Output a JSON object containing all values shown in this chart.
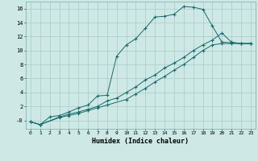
{
  "xlabel": "Humidex (Indice chaleur)",
  "bg_color": "#cde8e5",
  "grid_color": "#a8ccca",
  "line_color": "#1a6b6b",
  "xlim": [
    -0.5,
    23.5
  ],
  "ylim": [
    -1.2,
    17.0
  ],
  "xticks": [
    0,
    1,
    2,
    3,
    4,
    5,
    6,
    7,
    8,
    9,
    10,
    11,
    12,
    13,
    14,
    15,
    16,
    17,
    18,
    19,
    20,
    21,
    22,
    23
  ],
  "yticks": [
    0,
    2,
    4,
    6,
    8,
    10,
    12,
    14,
    16
  ],
  "ytick_labels": [
    "-0",
    "2",
    "4",
    "6",
    "8",
    "10",
    "12",
    "14",
    "16"
  ],
  "line1_x": [
    0,
    1,
    2,
    3,
    4,
    5,
    6,
    7,
    8,
    9,
    10,
    11,
    12,
    13,
    14,
    15,
    16,
    17,
    18,
    19,
    20,
    21,
    22,
    23
  ],
  "line1_y": [
    -0.2,
    -0.6,
    0.5,
    0.7,
    1.2,
    1.8,
    2.2,
    3.5,
    3.6,
    9.2,
    10.8,
    11.7,
    13.2,
    14.8,
    14.9,
    15.2,
    16.3,
    16.2,
    15.9,
    13.5,
    11.2,
    11.1,
    11.0,
    11.0
  ],
  "line2_x": [
    0,
    1,
    3,
    4,
    5,
    6,
    7,
    8,
    9,
    10,
    11,
    12,
    13,
    14,
    15,
    16,
    17,
    18,
    19,
    20,
    21,
    22,
    23
  ],
  "line2_y": [
    -0.2,
    -0.6,
    0.5,
    0.9,
    1.2,
    1.6,
    2.0,
    2.8,
    3.2,
    4.0,
    4.8,
    5.8,
    6.5,
    7.5,
    8.2,
    9.0,
    10.0,
    10.8,
    11.5,
    12.5,
    11.2,
    11.0,
    11.0
  ],
  "line3_x": [
    0,
    1,
    3,
    4,
    5,
    6,
    7,
    8,
    10,
    11,
    12,
    13,
    14,
    15,
    16,
    17,
    18,
    19,
    20,
    21,
    22,
    23
  ],
  "line3_y": [
    -0.2,
    -0.6,
    0.4,
    0.7,
    1.0,
    1.4,
    1.8,
    2.2,
    3.0,
    3.8,
    4.6,
    5.5,
    6.3,
    7.2,
    8.0,
    9.0,
    10.0,
    10.8,
    11.0,
    11.0,
    11.0,
    11.0
  ]
}
